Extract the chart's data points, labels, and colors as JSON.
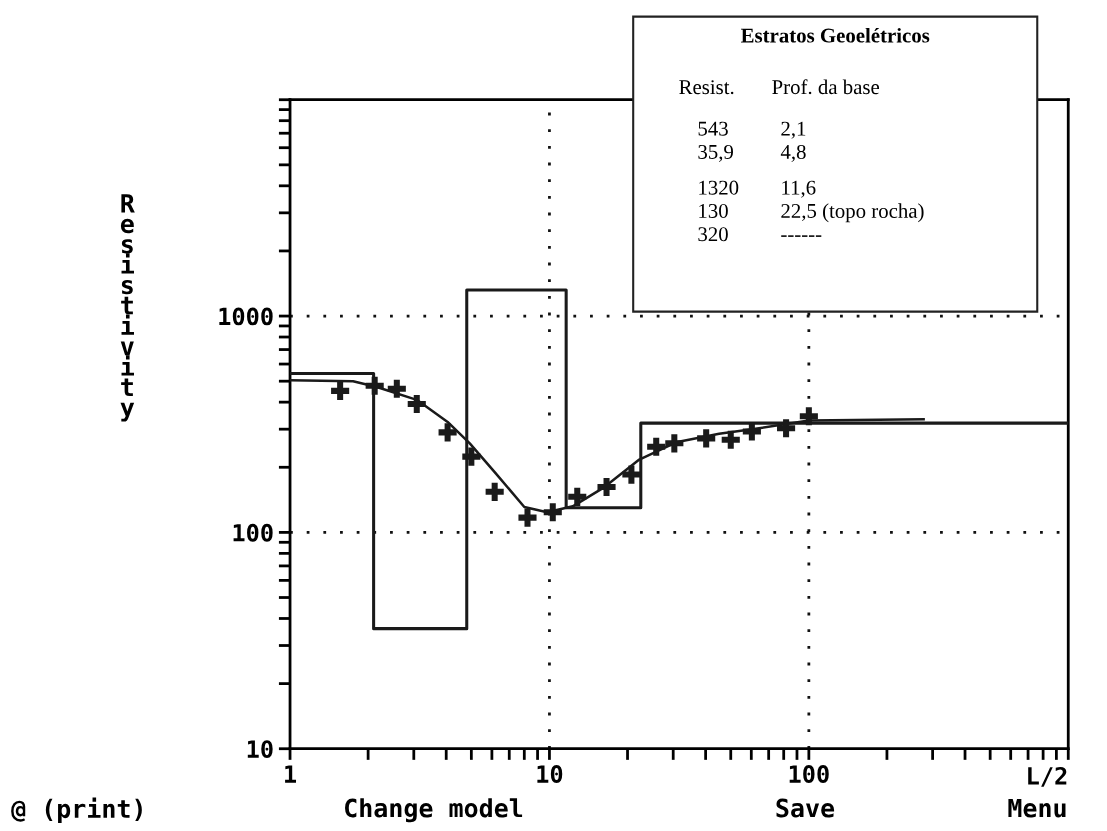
{
  "chart_data": {
    "type": "line",
    "ylabel": "Resistivity",
    "xlabel": "L/2",
    "log": "xy",
    "xlim": [
      1,
      1000
    ],
    "xticks": [
      1,
      {
        "value": 2,
        "label": null
      },
      {
        "value": 3,
        "label": null
      },
      {
        "value": 4,
        "label": null
      },
      {
        "value": 5,
        "label": null
      },
      {
        "value": 6,
        "label": null
      },
      {
        "value": 7,
        "label": null
      },
      {
        "value": 8,
        "label": null
      },
      {
        "value": 9,
        "label": null
      },
      10,
      {
        "value": 20,
        "label": null
      },
      {
        "value": 30,
        "label": null
      },
      {
        "value": 40,
        "label": null
      },
      {
        "value": 50,
        "label": null
      },
      {
        "value": 60,
        "label": null
      },
      {
        "value": 70,
        "label": null
      },
      {
        "value": 80,
        "label": null
      },
      {
        "value": 90,
        "label": null
      },
      100,
      {
        "value": 200,
        "label": null
      },
      {
        "value": 300,
        "label": null
      },
      {
        "value": 400,
        "label": null
      },
      {
        "value": 500,
        "label": null
      },
      {
        "value": 600,
        "label": null
      },
      {
        "value": 700,
        "label": null
      },
      {
        "value": 800,
        "label": null
      },
      {
        "value": 900,
        "label": null
      },
      {
        "value": 1000,
        "label": null
      }
    ],
    "ylim": [
      10,
      10000
    ],
    "yticks": [
      10,
      {
        "value": 20,
        "label": null
      },
      {
        "value": 30,
        "label": null
      },
      {
        "value": 40,
        "label": null
      },
      {
        "value": 50,
        "label": null
      },
      {
        "value": 60,
        "label": null
      },
      {
        "value": 70,
        "label": null
      },
      {
        "value": 80,
        "label": null
      },
      {
        "value": 90,
        "label": null
      },
      100,
      {
        "value": 200,
        "label": null
      },
      {
        "value": 300,
        "label": null
      },
      {
        "value": 400,
        "label": null
      },
      {
        "value": 500,
        "label": null
      },
      {
        "value": 600,
        "label": null
      },
      {
        "value": 700,
        "label": null
      },
      {
        "value": 800,
        "label": null
      },
      {
        "value": 900,
        "label": null
      },
      1000,
      {
        "value": 2000,
        "label": null
      },
      {
        "value": 3000,
        "label": null
      },
      {
        "value": 4000,
        "label": null
      },
      {
        "value": 5000,
        "label": null
      },
      {
        "value": 6000,
        "label": null
      },
      {
        "value": 7000,
        "label": null
      },
      {
        "value": 8000,
        "label": null
      },
      {
        "value": 9000,
        "label": null
      },
      {
        "value": 10000,
        "label": null
      }
    ],
    "ref_lines": [
      {
        "axis": "x",
        "value": 10,
        "line_style": "dotted"
      },
      {
        "axis": "x",
        "value": 100,
        "line_style": "dotted"
      },
      {
        "axis": "y",
        "value": 100,
        "line_style": "dotted"
      },
      {
        "axis": "y",
        "value": 1000,
        "line_style": "dotted"
      }
    ],
    "series": [
      {
        "type": "step",
        "color": "#1a1a1a",
        "x": [
          1,
          2.1,
          4.8,
          11.6,
          22.5,
          1000
        ],
        "values": [
          543,
          35.9,
          1320,
          130,
          320,
          320
        ]
      },
      {
        "color": "#1a1a1a",
        "x": [
          1,
          1.75,
          2.16,
          3.08,
          4.05,
          4.93,
          6.15,
          8.0,
          9.8,
          12.3,
          16.3,
          22.2,
          30.8,
          45.1,
          64.3,
          100,
          277
        ],
        "values": [
          505,
          500,
          470,
          410,
          324,
          258,
          190,
          131,
          124,
          132,
          162,
          217,
          261,
          286,
          303,
          329,
          333
        ]
      },
      {
        "type": "scatter",
        "color": "#1a1a1a",
        "marker": "cross",
        "x": [
          1.56,
          2.12,
          2.58,
          3.08,
          4.05,
          5.0,
          6.15,
          8.23,
          10.3,
          12.8,
          16.6,
          20.7,
          25.8,
          30.3,
          40.2,
          50.0,
          60.3,
          81.7,
          100
        ],
        "values": [
          451,
          476,
          461,
          392,
          290,
          224,
          154,
          117,
          124,
          146,
          162,
          185,
          249,
          258,
          272,
          268,
          293,
          303,
          344
        ]
      }
    ],
    "annotations": [
      "Estratos Geoelétricos",
      "Resist.",
      "Prof. da base",
      "543",
      "2,1",
      "35,9",
      "4,8",
      "1320",
      "11,6",
      "130",
      "22,5 (topo rocha)",
      "320",
      "------",
      "@ (print)",
      "Change model",
      "Save",
      "Menu"
    ]
  }
}
